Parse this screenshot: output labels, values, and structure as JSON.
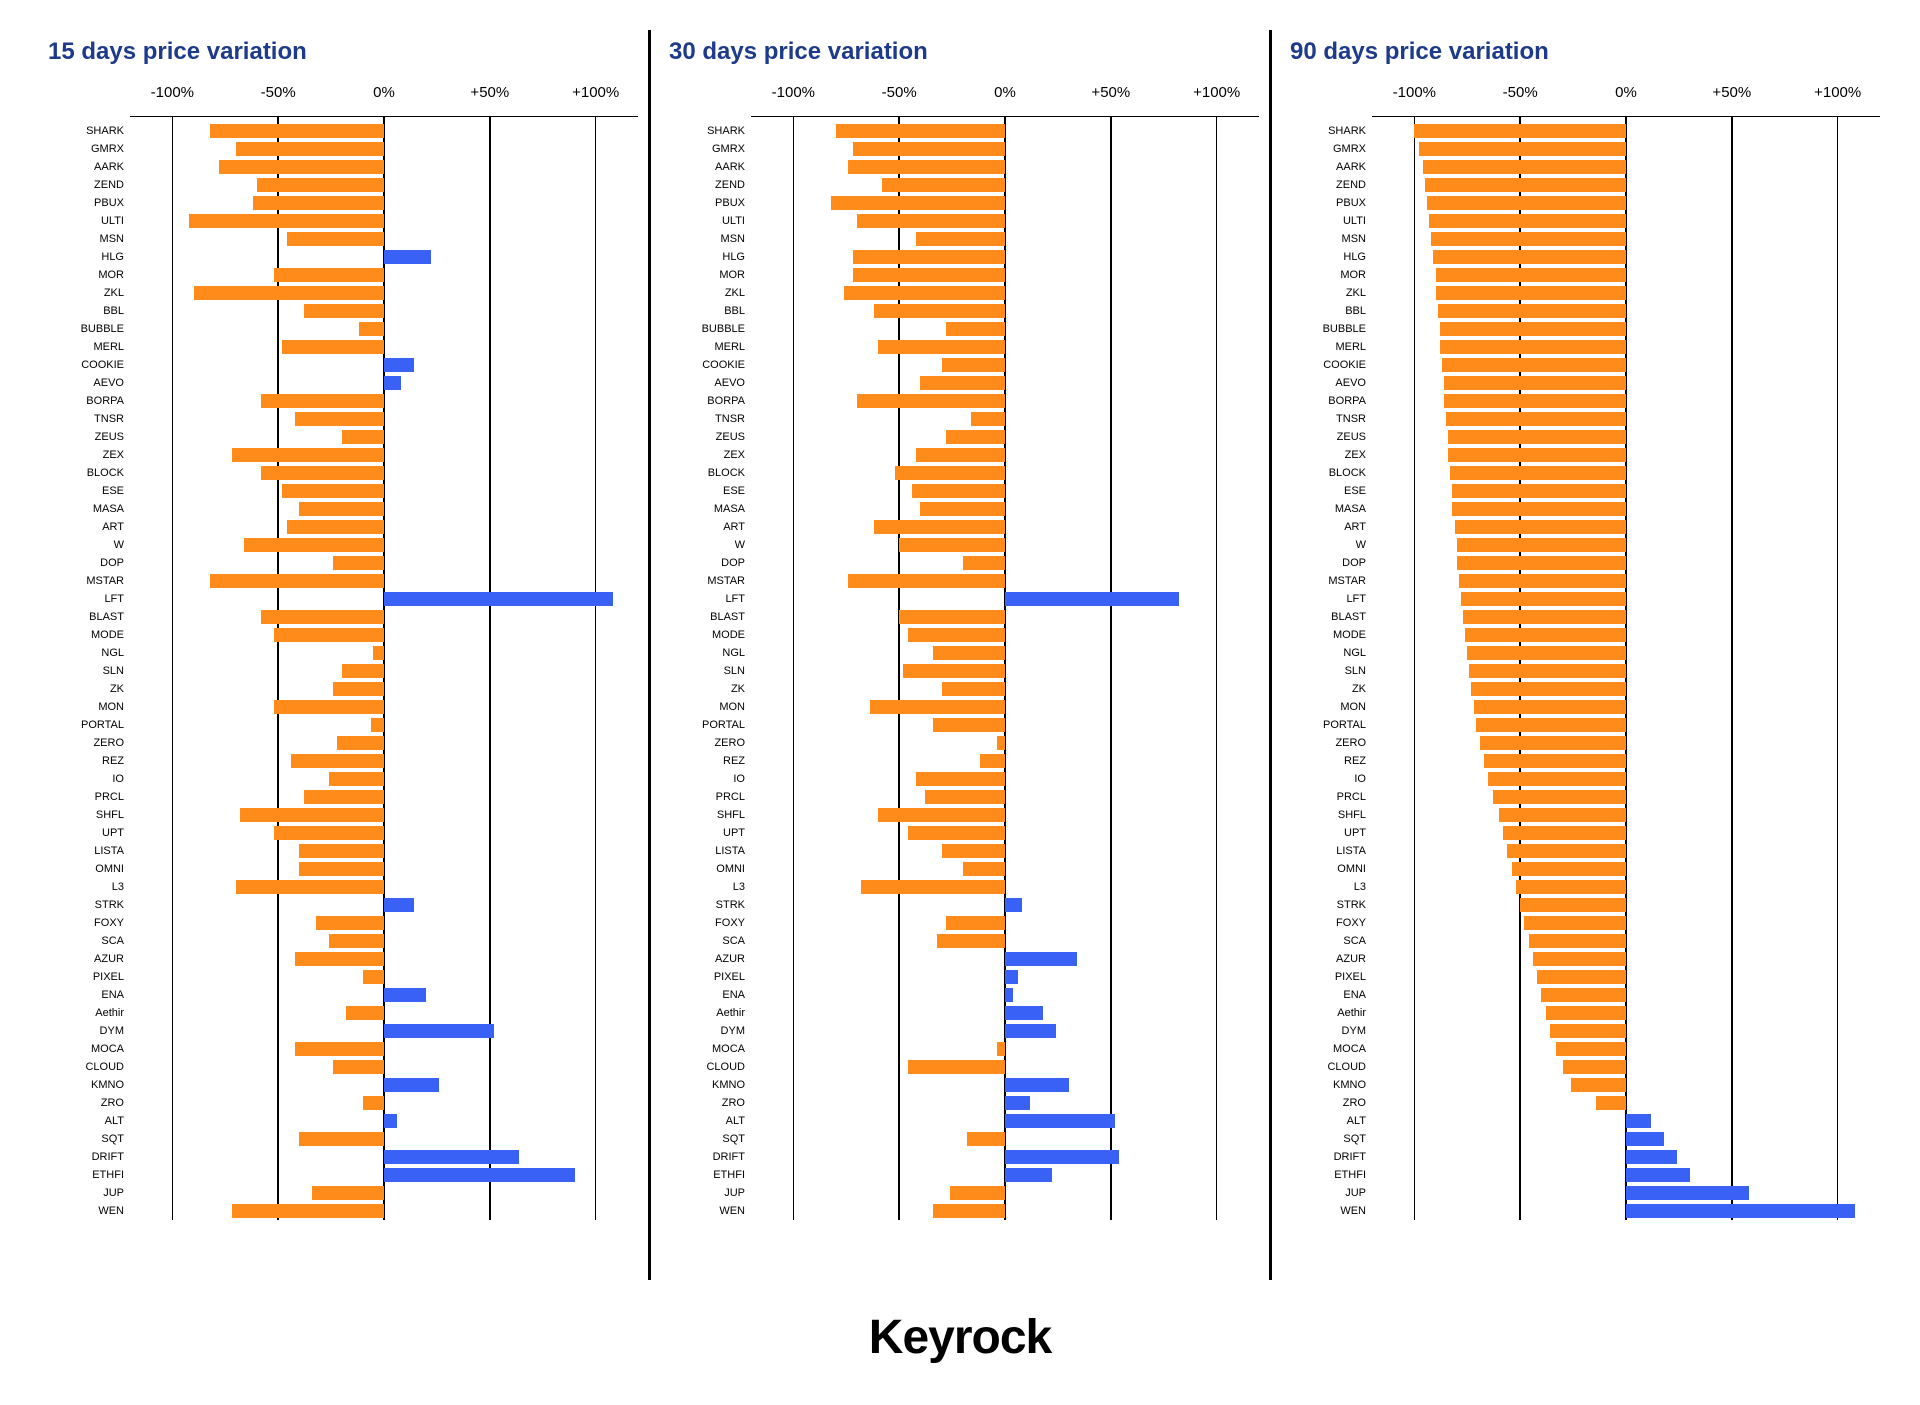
{
  "brand": "Keyrock",
  "colors": {
    "positive": "#3961f5",
    "negative": "#ff8c1a",
    "background": "#ffffff",
    "gridline": "#000000",
    "title": "#1e3a8a",
    "text": "#000000"
  },
  "xlim": [
    -120,
    120
  ],
  "ticks": [
    {
      "value": -100,
      "label": "-100%"
    },
    {
      "value": -50,
      "label": "-50%"
    },
    {
      "value": 0,
      "label": "0%"
    },
    {
      "value": 50,
      "label": "+50%"
    },
    {
      "value": 100,
      "label": "+100%"
    }
  ],
  "categories": [
    "SHARK",
    "GMRX",
    "AARK",
    "ZEND",
    "PBUX",
    "ULTI",
    "MSN",
    "HLG",
    "MOR",
    "ZKL",
    "BBL",
    "BUBBLE",
    "MERL",
    "COOKIE",
    "AEVO",
    "BORPA",
    "TNSR",
    "ZEUS",
    "ZEX",
    "BLOCK",
    "ESE",
    "MASA",
    "ART",
    "W",
    "DOP",
    "MSTAR",
    "LFT",
    "BLAST",
    "MODE",
    "NGL",
    "SLN",
    "ZK",
    "MON",
    "PORTAL",
    "ZERO",
    "REZ",
    "IO",
    "PRCL",
    "SHFL",
    "UPT",
    "LISTA",
    "OMNI",
    "L3",
    "STRK",
    "FOXY",
    "SCA",
    "AZUR",
    "PIXEL",
    "ENA",
    "Aethir",
    "DYM",
    "MOCA",
    "CLOUD",
    "KMNO",
    "ZRO",
    "ALT",
    "SQT",
    "DRIFT",
    "ETHFI",
    "JUP",
    "WEN"
  ],
  "panels": [
    {
      "title": "15 days price variation",
      "type": "bar",
      "values": [
        -82,
        -70,
        -78,
        -60,
        -62,
        -92,
        -46,
        22,
        -52,
        -90,
        -38,
        -12,
        -48,
        14,
        8,
        -58,
        -42,
        -20,
        -72,
        -58,
        -48,
        -40,
        -46,
        -66,
        -24,
        -82,
        108,
        -58,
        -52,
        -5,
        -20,
        -24,
        -52,
        -6,
        -22,
        -44,
        -26,
        -38,
        -68,
        -52,
        -40,
        -40,
        -70,
        14,
        -32,
        -26,
        -42,
        -10,
        20,
        -18,
        52,
        -42,
        -24,
        26,
        -10,
        6,
        -40,
        64,
        90,
        -34,
        -72
      ]
    },
    {
      "title": "30 days price variation",
      "type": "bar",
      "values": [
        -80,
        -72,
        -74,
        -58,
        -82,
        -70,
        -42,
        -72,
        -72,
        -76,
        -62,
        -28,
        -60,
        -30,
        -40,
        -70,
        -16,
        -28,
        -42,
        -52,
        -44,
        -40,
        -62,
        -50,
        -20,
        -74,
        82,
        -50,
        -46,
        -34,
        -48,
        -30,
        -64,
        -34,
        -4,
        -12,
        -42,
        -38,
        -60,
        -46,
        -30,
        -20,
        -68,
        8,
        -28,
        -32,
        34,
        6,
        4,
        18,
        24,
        -4,
        -46,
        30,
        12,
        52,
        -18,
        54,
        22,
        -26,
        -34
      ]
    },
    {
      "title": "90 days price variation",
      "type": "bar",
      "values": [
        -100,
        -98,
        -96,
        -95,
        -94,
        -93,
        -92,
        -91,
        -90,
        -90,
        -89,
        -88,
        -88,
        -87,
        -86,
        -86,
        -85,
        -84,
        -84,
        -83,
        -82,
        -82,
        -81,
        -80,
        -80,
        -79,
        -78,
        -77,
        -76,
        -75,
        -74,
        -73,
        -72,
        -71,
        -69,
        -67,
        -65,
        -63,
        -60,
        -58,
        -56,
        -54,
        -52,
        -50,
        -48,
        -46,
        -44,
        -42,
        -40,
        -38,
        -36,
        -33,
        -30,
        -26,
        -14,
        12,
        18,
        24,
        30,
        58,
        108
      ]
    }
  ]
}
